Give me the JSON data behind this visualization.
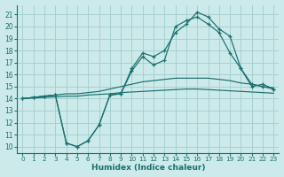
{
  "xlabel": "Humidex (Indice chaleur)",
  "bg_color": "#cceaea",
  "grid_color": "#a8d0d0",
  "line_color": "#1a6e6e",
  "xlim": [
    -0.5,
    23.5
  ],
  "ylim": [
    9.5,
    21.8
  ],
  "xticks": [
    0,
    1,
    2,
    3,
    4,
    5,
    6,
    7,
    8,
    9,
    10,
    11,
    12,
    13,
    14,
    15,
    16,
    17,
    18,
    19,
    20,
    21,
    22,
    23
  ],
  "yticks": [
    10,
    11,
    12,
    13,
    14,
    15,
    16,
    17,
    18,
    19,
    20,
    21
  ],
  "line_straight1_x": [
    0,
    1,
    2,
    3,
    4,
    5,
    6,
    7,
    8,
    9,
    10,
    11,
    12,
    13,
    14,
    15,
    16,
    17,
    18,
    19,
    20,
    21,
    22,
    23
  ],
  "line_straight1_y": [
    14.0,
    14.1,
    14.2,
    14.3,
    14.4,
    14.4,
    14.5,
    14.6,
    14.8,
    15.0,
    15.2,
    15.4,
    15.5,
    15.6,
    15.7,
    15.7,
    15.7,
    15.7,
    15.6,
    15.5,
    15.3,
    15.2,
    15.0,
    14.9
  ],
  "line_straight2_x": [
    0,
    1,
    2,
    3,
    4,
    5,
    6,
    7,
    8,
    9,
    10,
    11,
    12,
    13,
    14,
    15,
    16,
    17,
    18,
    19,
    20,
    21,
    22,
    23
  ],
  "line_straight2_y": [
    14.0,
    14.05,
    14.1,
    14.15,
    14.2,
    14.2,
    14.3,
    14.35,
    14.4,
    14.5,
    14.55,
    14.6,
    14.65,
    14.7,
    14.75,
    14.8,
    14.8,
    14.75,
    14.7,
    14.65,
    14.6,
    14.55,
    14.5,
    14.45
  ],
  "line_jagged1_x": [
    0,
    1,
    2,
    3,
    4,
    5,
    6,
    7,
    8,
    9,
    10,
    11,
    12,
    13,
    14,
    15,
    16,
    17,
    18,
    19,
    20,
    21,
    22,
    23
  ],
  "line_jagged1_y": [
    14.0,
    14.1,
    14.2,
    14.3,
    10.3,
    10.0,
    10.5,
    11.8,
    14.3,
    14.4,
    16.5,
    17.8,
    17.5,
    18.0,
    19.5,
    20.2,
    21.2,
    20.8,
    19.8,
    19.2,
    16.5,
    15.2,
    15.0,
    14.8
  ],
  "line_jagged2_x": [
    0,
    1,
    2,
    3,
    4,
    5,
    6,
    7,
    8,
    9,
    10,
    11,
    12,
    13,
    14,
    15,
    16,
    17,
    18,
    19,
    20,
    21,
    22,
    23
  ],
  "line_jagged2_y": [
    14.0,
    14.1,
    14.2,
    14.3,
    10.3,
    10.0,
    10.5,
    11.8,
    14.3,
    14.4,
    16.3,
    17.5,
    16.8,
    17.2,
    20.0,
    20.5,
    20.8,
    20.2,
    19.5,
    17.8,
    16.5,
    15.0,
    15.2,
    14.8
  ],
  "marker": "+"
}
